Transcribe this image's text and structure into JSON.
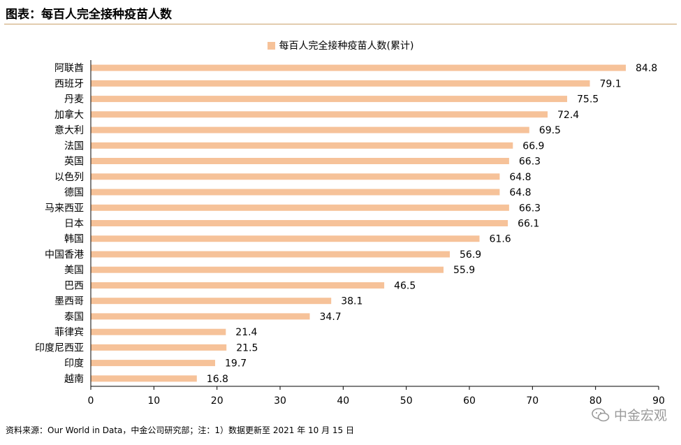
{
  "header": {
    "title": "图表：每百人完全接种疫苗人数"
  },
  "footer": {
    "source": "资料来源：Our World in Data，中金公司研究部；注：1）数据更新至 2021 年 10 月 15 日",
    "watermark": "中金宏观"
  },
  "colors": {
    "bar": "#f6c299",
    "axis": "#000000",
    "title_rule": "#c9a06a"
  },
  "chart_data": {
    "type": "bar",
    "orientation": "horizontal",
    "title": "",
    "xlabel": "",
    "ylabel": "",
    "xlim": [
      0,
      90
    ],
    "xticks": [
      0,
      10,
      20,
      30,
      40,
      50,
      60,
      70,
      80,
      90
    ],
    "grid": false,
    "legend_position": "top-center",
    "series": [
      {
        "name": "每百人完全接种疫苗人数(累计)",
        "values": [
          84.8,
          79.1,
          75.5,
          72.4,
          69.5,
          66.9,
          66.3,
          64.8,
          64.8,
          66.3,
          66.1,
          61.6,
          56.9,
          55.9,
          46.5,
          38.1,
          34.7,
          21.4,
          21.5,
          19.7,
          16.8
        ]
      }
    ],
    "categories": [
      "阿联酋",
      "西班牙",
      "丹麦",
      "加拿大",
      "意大利",
      "法国",
      "英国",
      "以色列",
      "德国",
      "马来西亚",
      "日本",
      "韩国",
      "中国香港",
      "美国",
      "巴西",
      "墨西哥",
      "泰国",
      "菲律宾",
      "印度尼西亚",
      "印度",
      "越南"
    ],
    "data_labels": [
      "84.8",
      "79.1",
      "75.5",
      "72.4",
      "69.5",
      "66.9",
      "66.3",
      "64.8",
      "64.8",
      "66.3",
      "66.1",
      "61.6",
      "56.9",
      "55.9",
      "46.5",
      "38.1",
      "34.7",
      "21.4",
      "21.5",
      "19.7",
      "16.8"
    ]
  }
}
